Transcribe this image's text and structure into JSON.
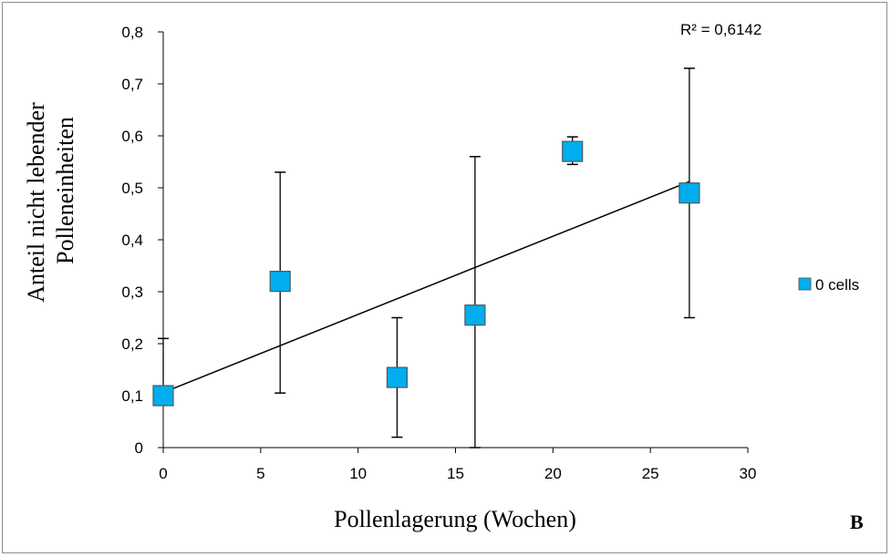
{
  "chart_data": {
    "type": "scatter",
    "title": "",
    "xlabel": "Pollenlagerung (Wochen)",
    "ylabel_lines": [
      "Anteil nicht lebender",
      "Polleneinheiten"
    ],
    "xlim": [
      0,
      30
    ],
    "ylim": [
      0,
      0.8
    ],
    "x_ticks": [
      0,
      5,
      10,
      15,
      20,
      25,
      30
    ],
    "x_tick_labels": [
      "0",
      "5",
      "10",
      "15",
      "20",
      "25",
      "30"
    ],
    "y_ticks": [
      0,
      0.1,
      0.2,
      0.3,
      0.4,
      0.5,
      0.6,
      0.7,
      0.8
    ],
    "y_tick_labels": [
      "0",
      "0,1",
      "0,2",
      "0,3",
      "0,4",
      "0,5",
      "0,6",
      "0,7",
      "0,8"
    ],
    "grid": false,
    "legend_position": "right",
    "series": [
      {
        "name": "0 cells",
        "color": "#00aeef",
        "marker": "square",
        "points": [
          {
            "x": 0,
            "y": 0.1,
            "err_low": 0.1,
            "err_high": 0.21
          },
          {
            "x": 6,
            "y": 0.32,
            "err_low": 0.105,
            "err_high": 0.53
          },
          {
            "x": 12,
            "y": 0.135,
            "err_low": 0.02,
            "err_high": 0.25
          },
          {
            "x": 16,
            "y": 0.255,
            "err_low": 0.0,
            "err_high": 0.56
          },
          {
            "x": 21,
            "y": 0.57,
            "err_low": 0.545,
            "err_high": 0.598
          },
          {
            "x": 27,
            "y": 0.49,
            "err_low": 0.25,
            "err_high": 0.73
          }
        ]
      }
    ],
    "trendline": {
      "x_start": 0,
      "y_start": 0.106,
      "x_end": 27,
      "y_end": 0.512,
      "color": "#000000"
    },
    "annotation": "R² = 0,6142",
    "panel_label": "B"
  }
}
